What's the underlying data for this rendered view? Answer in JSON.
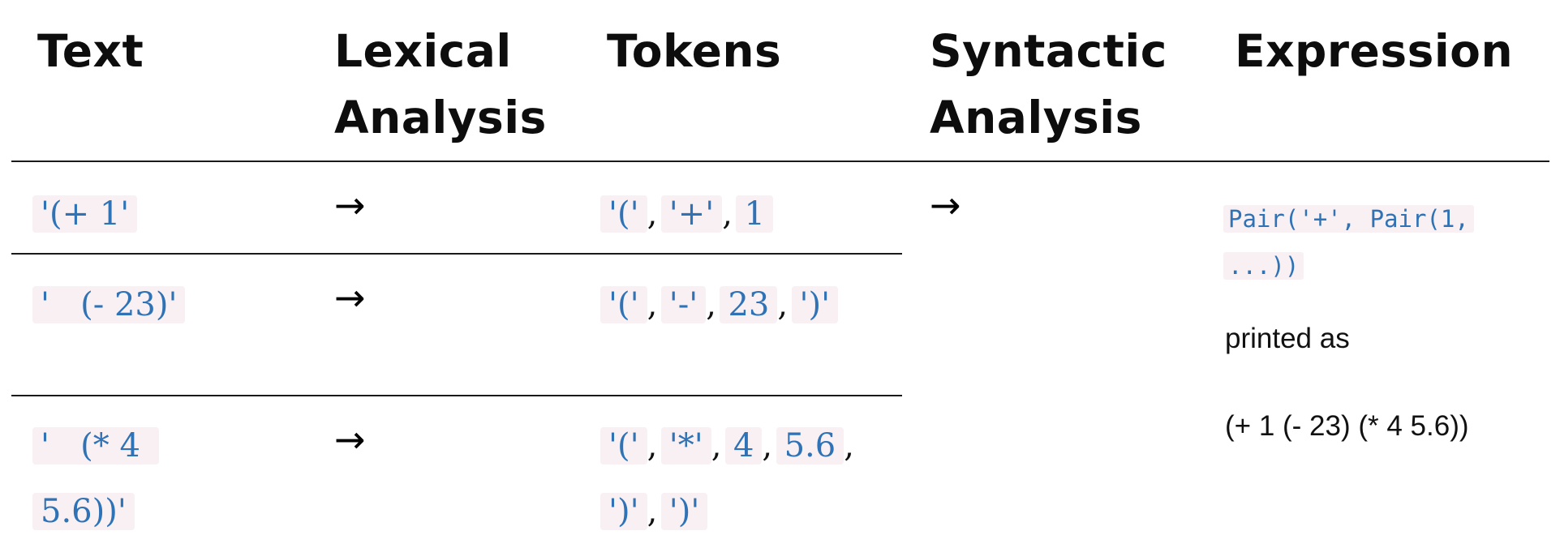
{
  "headers": {
    "text": "Text",
    "lexical_1": "Lexical",
    "lexical_2": "Analysis",
    "tokens": "Tokens",
    "syntactic_1": "Syntactic",
    "syntactic_2": "Analysis",
    "expression": "Expression"
  },
  "arrow": "→",
  "separator": ",",
  "rows": [
    {
      "text": "'(+ 1'",
      "tokens": [
        "'('",
        "'+'",
        "1"
      ]
    },
    {
      "text": "'   (- 23)'",
      "tokens": [
        "'('",
        "'-'",
        "23",
        "')'"
      ]
    },
    {
      "text": "'   (* 4 5.6))'",
      "tokens": [
        "'('",
        "'*'",
        "4",
        "5.6",
        "')'",
        "')'"
      ]
    }
  ],
  "expression": {
    "pair": "Pair('+', Pair(1, ...))",
    "printed_label": "printed as",
    "printed_value": "(+ 1 (- 23) (* 4 5.6))"
  }
}
